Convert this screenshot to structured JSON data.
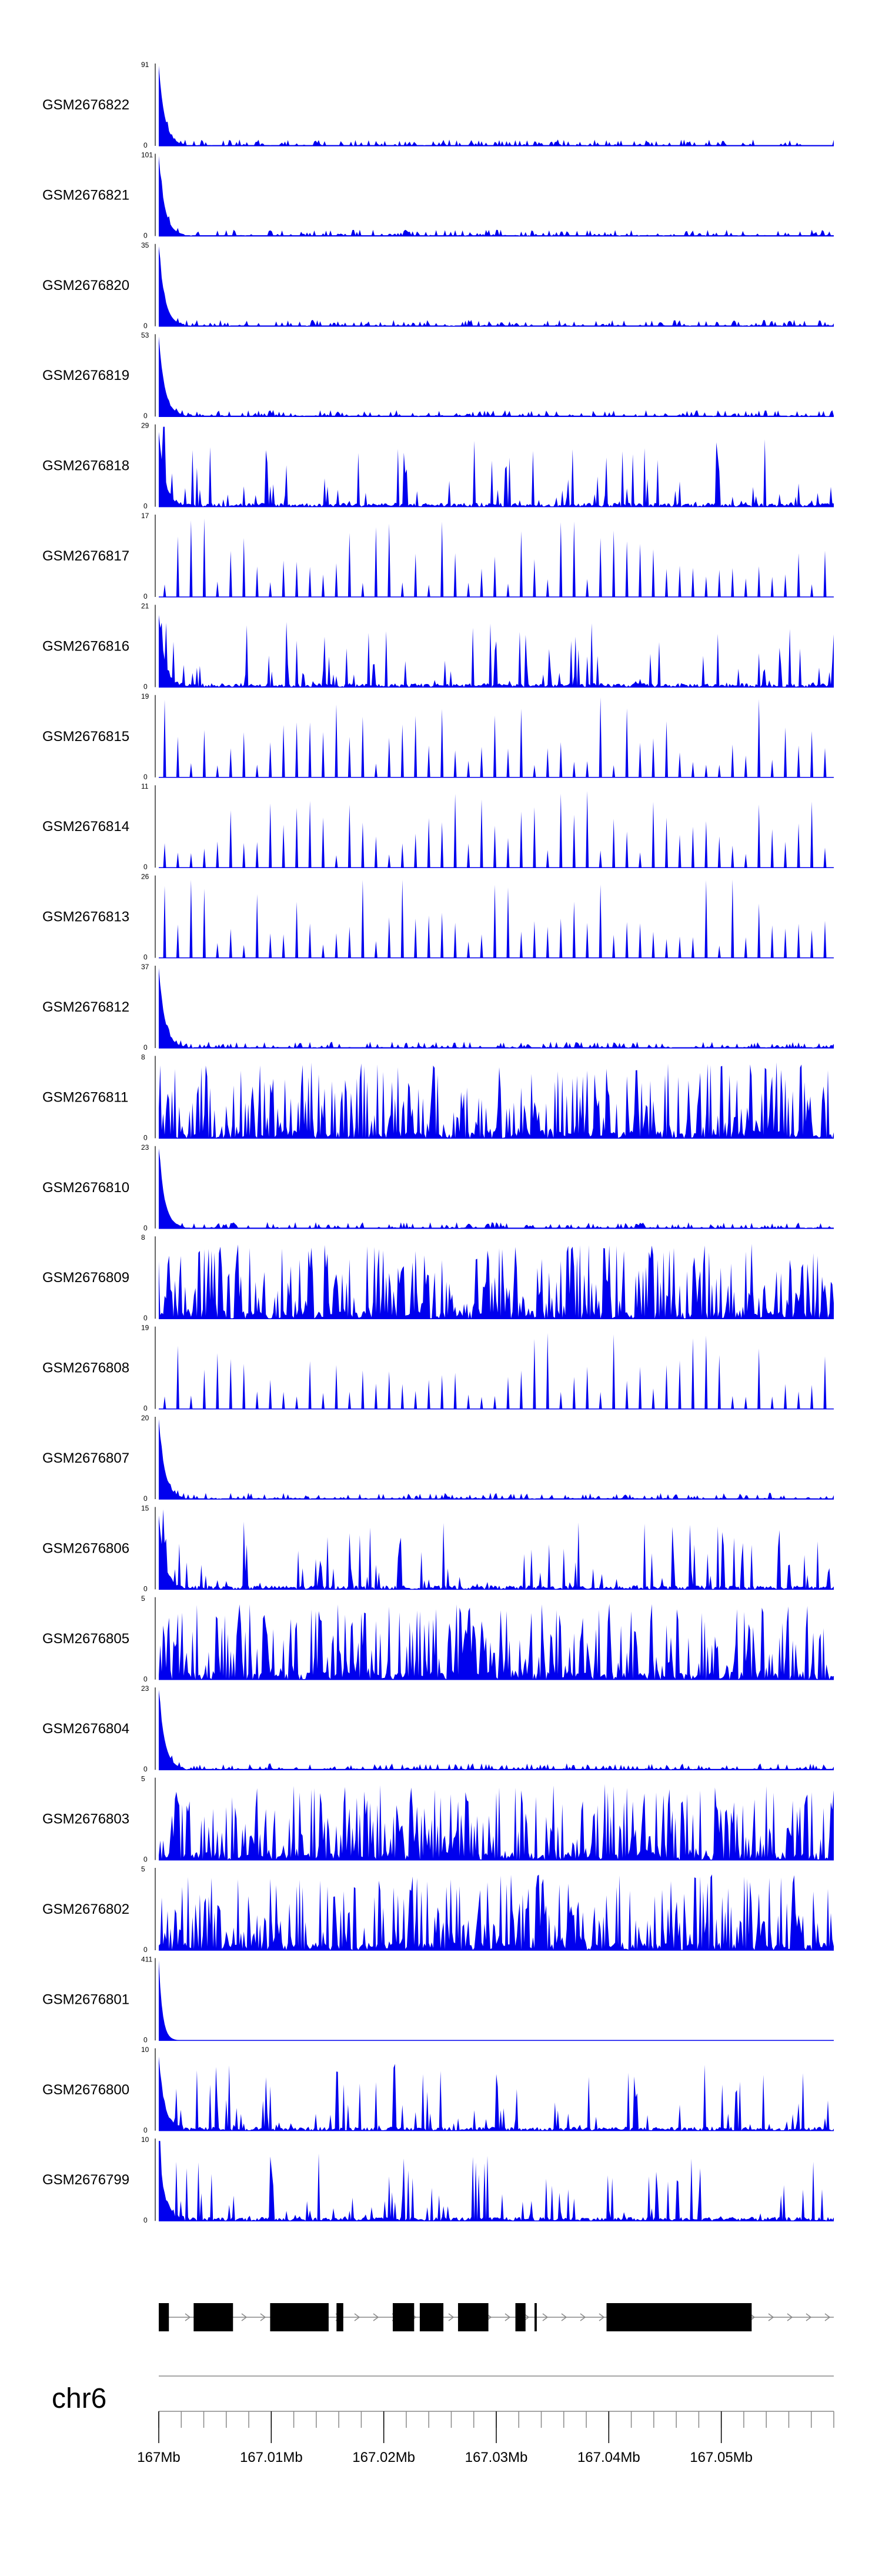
{
  "chart_data": {
    "type": "area",
    "track_color": "#0000ee",
    "genome": {
      "chromosome": "chr6",
      "x_range_mb": [
        167.0,
        167.06
      ],
      "x_tick_labels": [
        "167Mb",
        "167.01Mb",
        "167.02Mb",
        "167.03Mb",
        "167.04Mb",
        "167.05Mb"
      ],
      "x_tick_values": [
        167.0,
        167.01,
        167.02,
        167.03,
        167.04,
        167.05
      ],
      "minor_tick_step_mb": 0.002
    },
    "series": [
      {
        "name": "GSM2676822",
        "ymax": "91",
        "ymin": "0",
        "profile": "sharp"
      },
      {
        "name": "GSM2676821",
        "ymax": "101",
        "ymin": "0",
        "profile": "sharp"
      },
      {
        "name": "GSM2676820",
        "ymax": "35",
        "ymin": "0",
        "profile": "sharp"
      },
      {
        "name": "GSM2676819",
        "ymax": "53",
        "ymin": "0",
        "profile": "sharp"
      },
      {
        "name": "GSM2676818",
        "ymax": "29",
        "ymin": "0",
        "profile": "spiky"
      },
      {
        "name": "GSM2676817",
        "ymax": "17",
        "ymin": "0",
        "profile": "sparse"
      },
      {
        "name": "GSM2676816",
        "ymax": "21",
        "ymin": "0",
        "profile": "spiky"
      },
      {
        "name": "GSM2676815",
        "ymax": "19",
        "ymin": "0",
        "profile": "sparse"
      },
      {
        "name": "GSM2676814",
        "ymax": "11",
        "ymin": "0",
        "profile": "sparse"
      },
      {
        "name": "GSM2676813",
        "ymax": "26",
        "ymin": "0",
        "profile": "sparse"
      },
      {
        "name": "GSM2676812",
        "ymax": "37",
        "ymin": "0",
        "profile": "sharp"
      },
      {
        "name": "GSM2676811",
        "ymax": "8",
        "ymin": "0",
        "profile": "dense"
      },
      {
        "name": "GSM2676810",
        "ymax": "23",
        "ymin": "0",
        "profile": "sharp"
      },
      {
        "name": "GSM2676809",
        "ymax": "8",
        "ymin": "0",
        "profile": "dense"
      },
      {
        "name": "GSM2676808",
        "ymax": "19",
        "ymin": "0",
        "profile": "sparse"
      },
      {
        "name": "GSM2676807",
        "ymax": "20",
        "ymin": "0",
        "profile": "sharp"
      },
      {
        "name": "GSM2676806",
        "ymax": "15",
        "ymin": "0",
        "profile": "spiky"
      },
      {
        "name": "GSM2676805",
        "ymax": "5",
        "ymin": "0",
        "profile": "dense"
      },
      {
        "name": "GSM2676804",
        "ymax": "23",
        "ymin": "0",
        "profile": "sharp"
      },
      {
        "name": "GSM2676803",
        "ymax": "5",
        "ymin": "0",
        "profile": "dense"
      },
      {
        "name": "GSM2676802",
        "ymax": "5",
        "ymin": "0",
        "profile": "dense"
      },
      {
        "name": "GSM2676801",
        "ymax": "411",
        "ymin": "0",
        "profile": "single"
      },
      {
        "name": "GSM2676800",
        "ymax": "10",
        "ymin": "0",
        "profile": "spiky"
      },
      {
        "name": "GSM2676799",
        "ymax": "10",
        "ymin": "0",
        "profile": "spiky"
      }
    ],
    "gene_model": {
      "strand": "+",
      "exons_mb": [
        [
          167.0,
          167.0009
        ],
        [
          167.0031,
          167.0066
        ],
        [
          167.0099,
          167.0151
        ],
        [
          167.0158,
          167.0164
        ],
        [
          167.0208,
          167.0227
        ],
        [
          167.0232,
          167.0253
        ],
        [
          167.0266,
          167.0293
        ],
        [
          167.0317,
          167.0326
        ],
        [
          167.0334,
          167.0336
        ],
        [
          167.0398,
          167.0527
        ]
      ]
    }
  }
}
